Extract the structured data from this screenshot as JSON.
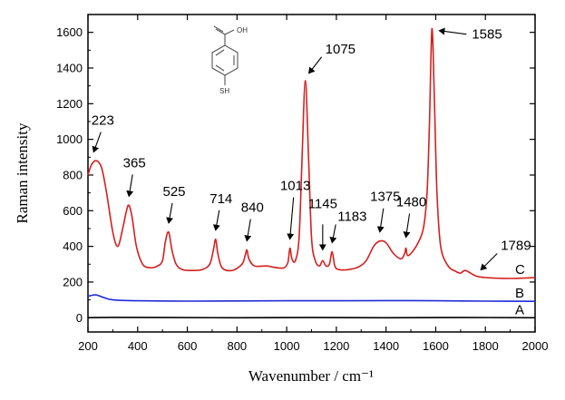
{
  "chart_data": {
    "type": "line",
    "xlabel": "Wavenumber / cm⁻¹",
    "ylabel": "Raman intensity",
    "xlim": [
      200,
      2000
    ],
    "ylim": [
      -80,
      1700
    ],
    "xticks": [
      200,
      400,
      600,
      800,
      1000,
      1200,
      1400,
      1600,
      1800,
      2000
    ],
    "yticks": [
      0,
      200,
      400,
      600,
      800,
      1000,
      1200,
      1400,
      1600
    ],
    "grid": false,
    "series": [
      {
        "name": "A",
        "color": "#000000",
        "x": [
          200,
          300,
          500,
          800,
          1100,
          1400,
          1700,
          2000
        ],
        "y": [
          0,
          2,
          1,
          0,
          1,
          0,
          1,
          0
        ]
      },
      {
        "name": "B",
        "color": "#1f2bd6",
        "x": [
          200,
          230,
          260,
          300,
          400,
          600,
          800,
          1000,
          1200,
          1400,
          1600,
          1800,
          2000
        ],
        "y": [
          120,
          128,
          115,
          100,
          95,
          93,
          94,
          95,
          95,
          96,
          95,
          93,
          92
        ]
      },
      {
        "name": "C",
        "color": "#d42020",
        "x": [
          200,
          215,
          235,
          255,
          275,
          300,
          320,
          340,
          355,
          365,
          378,
          395,
          420,
          450,
          480,
          500,
          512,
          525,
          538,
          555,
          580,
          620,
          660,
          690,
          705,
          714,
          723,
          740,
          780,
          820,
          833,
          840,
          848,
          870,
          920,
          960,
          990,
          1005,
          1013,
          1021,
          1035,
          1050,
          1062,
          1075,
          1088,
          1100,
          1115,
          1132,
          1145,
          1158,
          1172,
          1183,
          1194,
          1210,
          1250,
          1290,
          1320,
          1350,
          1375,
          1400,
          1430,
          1460,
          1475,
          1480,
          1486,
          1500,
          1525,
          1550,
          1565,
          1575,
          1585,
          1595,
          1605,
          1620,
          1650,
          1680,
          1700,
          1720,
          1760,
          1800,
          1900,
          2000
        ],
        "y": [
          800,
          860,
          880,
          840,
          700,
          480,
          400,
          500,
          600,
          630,
          560,
          400,
          300,
          280,
          290,
          320,
          430,
          480,
          380,
          300,
          270,
          265,
          270,
          300,
          380,
          440,
          360,
          280,
          265,
          300,
          350,
          380,
          330,
          290,
          290,
          280,
          280,
          310,
          390,
          330,
          320,
          450,
          900,
          1330,
          900,
          450,
          320,
          290,
          320,
          290,
          300,
          370,
          290,
          270,
          270,
          285,
          320,
          400,
          430,
          420,
          360,
          330,
          360,
          390,
          350,
          360,
          410,
          500,
          700,
          1100,
          1620,
          1200,
          700,
          400,
          290,
          260,
          250,
          265,
          235,
          225,
          220,
          225
        ]
      }
    ],
    "peak_labels": [
      {
        "text": "223",
        "x": 223
      },
      {
        "text": "365",
        "x": 365
      },
      {
        "text": "525",
        "x": 525
      },
      {
        "text": "714",
        "x": 714
      },
      {
        "text": "840",
        "x": 840
      },
      {
        "text": "1013",
        "x": 1013
      },
      {
        "text": "1075",
        "x": 1075
      },
      {
        "text": "1145",
        "x": 1145
      },
      {
        "text": "1183",
        "x": 1183
      },
      {
        "text": "1375",
        "x": 1375
      },
      {
        "text": "1480",
        "x": 1480
      },
      {
        "text": "1585",
        "x": 1585
      },
      {
        "text": "1789",
        "x": 1789
      }
    ]
  },
  "molecule": {
    "group_top": "OH",
    "group_bottom": "SH"
  }
}
